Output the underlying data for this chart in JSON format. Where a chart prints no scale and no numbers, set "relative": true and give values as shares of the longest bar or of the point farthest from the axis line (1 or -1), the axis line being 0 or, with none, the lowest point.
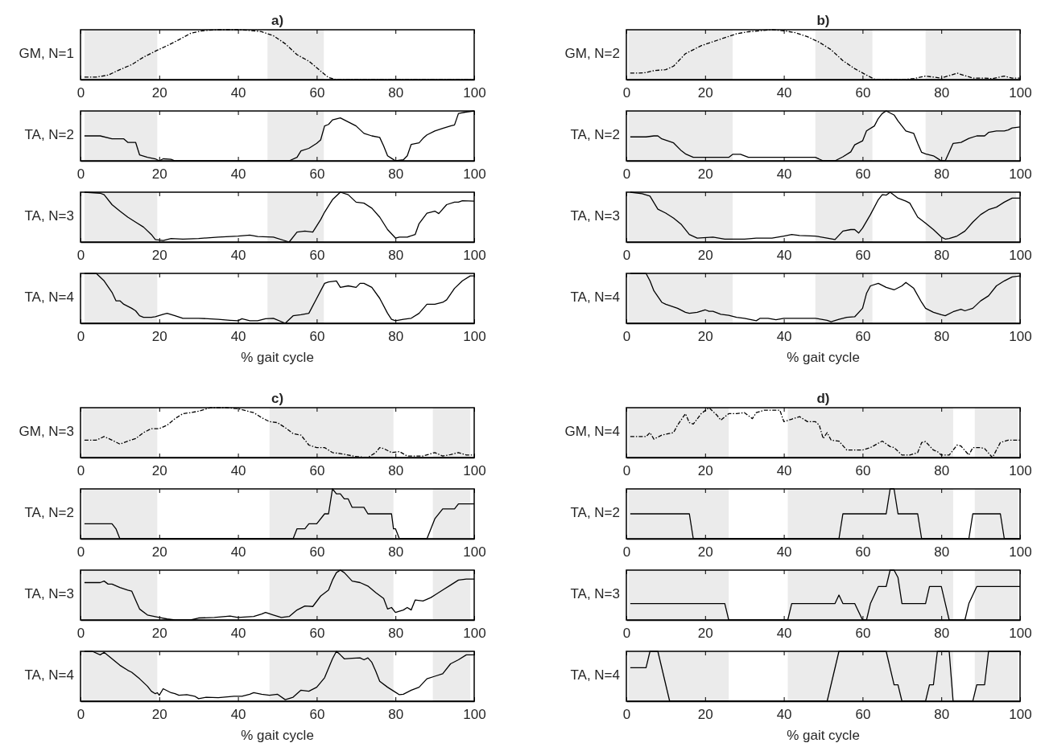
{
  "chart_data": [
    {
      "type": "line",
      "title": "a)",
      "ylabel": "GM, N=1",
      "xlim": [
        0,
        100
      ],
      "xticks": [
        0,
        20,
        40,
        60,
        80,
        100
      ],
      "relative": true,
      "line_style": "dashdot",
      "color": "#000000",
      "bands": [
        {
          "axis": "x",
          "from": 1,
          "to": 19.5,
          "color": "#ebebeb"
        },
        {
          "axis": "x",
          "from": 47.5,
          "to": 61.8,
          "color": "#ebebeb"
        }
      ],
      "x": [
        1,
        4,
        7,
        10,
        13,
        16,
        19,
        22,
        25,
        28,
        31,
        35,
        40,
        44,
        46,
        49,
        52,
        55,
        58,
        61,
        63,
        65,
        100
      ],
      "values": [
        0.05,
        0.05,
        0.09,
        0.2,
        0.3,
        0.45,
        0.57,
        0.68,
        0.8,
        0.93,
        0.98,
        1,
        1,
        0.98,
        0.96,
        0.88,
        0.72,
        0.5,
        0.37,
        0.17,
        0.04,
        0,
        0
      ]
    },
    {
      "type": "line",
      "ylabel": "TA, N=2",
      "xlim": [
        0,
        100
      ],
      "xticks": [
        0,
        20,
        40,
        60,
        80,
        100
      ],
      "relative": true,
      "line_style": "solid",
      "color": "#000000",
      "bands": [
        {
          "axis": "x",
          "from": 1,
          "to": 19.5,
          "color": "#ebebeb"
        },
        {
          "axis": "x",
          "from": 47.5,
          "to": 61.8,
          "color": "#ebebeb"
        }
      ],
      "x": [
        1,
        5,
        8,
        11,
        12,
        14,
        15,
        17,
        19,
        20,
        21,
        23,
        24,
        53,
        55,
        56,
        58,
        60,
        61,
        62,
        63,
        64,
        66,
        68,
        70,
        72,
        74,
        76,
        77,
        78,
        79,
        80,
        82,
        83,
        84,
        86,
        87,
        88,
        90,
        92,
        94,
        95,
        96,
        98,
        100
      ],
      "values": [
        0.5,
        0.5,
        0.44,
        0.44,
        0.37,
        0.37,
        0.12,
        0.07,
        0.04,
        0,
        0.04,
        0.03,
        0,
        0,
        0.07,
        0.2,
        0.25,
        0.35,
        0.42,
        0.7,
        0.73,
        0.82,
        0.86,
        0.78,
        0.7,
        0.55,
        0.5,
        0.47,
        0.3,
        0.1,
        0.05,
        0,
        0.02,
        0.1,
        0.33,
        0.36,
        0.45,
        0.52,
        0.6,
        0.65,
        0.7,
        0.72,
        0.95,
        0.98,
        1
      ]
    },
    {
      "type": "line",
      "ylabel": "TA, N=3",
      "xlim": [
        0,
        100
      ],
      "xticks": [
        0,
        20,
        40,
        60,
        80,
        100
      ],
      "relative": true,
      "line_style": "solid",
      "color": "#000000",
      "bands": [
        {
          "axis": "x",
          "from": 1,
          "to": 19.5,
          "color": "#ebebeb"
        },
        {
          "axis": "x",
          "from": 47.5,
          "to": 61.8,
          "color": "#ebebeb"
        }
      ],
      "x": [
        1,
        5,
        6,
        8,
        10,
        12,
        14,
        16,
        18,
        19,
        21,
        23,
        26,
        30,
        35,
        40,
        43,
        45,
        49,
        53,
        55,
        57,
        59,
        61,
        62,
        64,
        66,
        68,
        70,
        72,
        74,
        76,
        78,
        80,
        81,
        83,
        85,
        86,
        88,
        90,
        91,
        93,
        95,
        96,
        97,
        100
      ],
      "values": [
        1,
        0.98,
        0.95,
        0.75,
        0.62,
        0.5,
        0.4,
        0.3,
        0.15,
        0.05,
        0.03,
        0.07,
        0.06,
        0.07,
        0.1,
        0.12,
        0.14,
        0.11,
        0.1,
        0,
        0.2,
        0.22,
        0.2,
        0.45,
        0.6,
        0.85,
        1,
        0.95,
        0.8,
        0.78,
        0.68,
        0.5,
        0.25,
        0.08,
        0.1,
        0.1,
        0.15,
        0.37,
        0.58,
        0.62,
        0.57,
        0.75,
        0.8,
        0.8,
        0.83,
        0.82
      ]
    },
    {
      "type": "line",
      "ylabel": "TA, N=4",
      "xlabel": "% gait cycle",
      "xlim": [
        0,
        100
      ],
      "xticks": [
        0,
        20,
        40,
        60,
        80,
        100
      ],
      "relative": true,
      "line_style": "solid",
      "color": "#000000",
      "bands": [
        {
          "axis": "x",
          "from": 1,
          "to": 19.5,
          "color": "#ebebeb"
        },
        {
          "axis": "x",
          "from": 47.5,
          "to": 61.8,
          "color": "#ebebeb"
        }
      ],
      "x": [
        1,
        4,
        6,
        8,
        9,
        10,
        11,
        13,
        14,
        15,
        16,
        18,
        19,
        21,
        22,
        24,
        26,
        30,
        35,
        38,
        40,
        41,
        43,
        45,
        47,
        49,
        52,
        54,
        56,
        58,
        60,
        62,
        63,
        65,
        66,
        68,
        70,
        71,
        72,
        74,
        76,
        78,
        79,
        80,
        82,
        84,
        86,
        88,
        90,
        92,
        93,
        95,
        97,
        99,
        100
      ],
      "values": [
        1,
        1,
        0.85,
        0.62,
        0.45,
        0.45,
        0.38,
        0.3,
        0.25,
        0.15,
        0.12,
        0.12,
        0.13,
        0.18,
        0.2,
        0.15,
        0.1,
        0.1,
        0.08,
        0.06,
        0.05,
        0.09,
        0.05,
        0.05,
        0.09,
        0.1,
        0,
        0.15,
        0.17,
        0.2,
        0.5,
        0.8,
        0.83,
        0.85,
        0.72,
        0.75,
        0.72,
        0.8,
        0.8,
        0.72,
        0.5,
        0.2,
        0.08,
        0.05,
        0.08,
        0.1,
        0.2,
        0.38,
        0.38,
        0.42,
        0.47,
        0.7,
        0.85,
        0.95,
        0.95
      ]
    },
    {
      "type": "line",
      "title": "b)",
      "ylabel": "GM, N=2",
      "xlim": [
        0,
        100
      ],
      "xticks": [
        0,
        20,
        40,
        60,
        80,
        100
      ],
      "relative": true,
      "line_style": "dashdot",
      "color": "#000000",
      "bands": [
        {
          "axis": "x",
          "from": 0.5,
          "to": 27,
          "color": "#ebebeb"
        },
        {
          "axis": "x",
          "from": 48,
          "to": 62.5,
          "color": "#ebebeb"
        },
        {
          "axis": "x",
          "from": 76,
          "to": 99,
          "color": "#ebebeb"
        }
      ],
      "x": [
        1,
        3,
        5,
        7,
        10,
        12,
        15,
        17,
        19,
        22,
        25,
        28,
        31,
        34,
        37,
        40,
        43,
        46,
        49,
        52,
        55,
        58,
        61,
        63,
        65,
        70,
        73,
        76,
        78,
        80,
        82,
        84,
        86,
        88,
        91,
        93,
        96,
        98,
        100
      ],
      "values": [
        0.13,
        0.13,
        0.14,
        0.18,
        0.2,
        0.27,
        0.52,
        0.6,
        0.68,
        0.76,
        0.84,
        0.92,
        0.96,
        0.98,
        1,
        0.98,
        0.94,
        0.86,
        0.75,
        0.6,
        0.38,
        0.22,
        0.09,
        0.01,
        0,
        0,
        0.02,
        0.07,
        0.05,
        0.03,
        0.08,
        0.13,
        0.08,
        0.03,
        0.03,
        0.02,
        0.07,
        0.03,
        0.03
      ]
    },
    {
      "type": "line",
      "ylabel": "TA, N=2",
      "xlim": [
        0,
        100
      ],
      "xticks": [
        0,
        20,
        40,
        60,
        80,
        100
      ],
      "relative": true,
      "line_style": "solid",
      "color": "#000000",
      "bands": [
        {
          "axis": "x",
          "from": 0.5,
          "to": 27,
          "color": "#ebebeb"
        },
        {
          "axis": "x",
          "from": 48,
          "to": 62.5,
          "color": "#ebebeb"
        },
        {
          "axis": "x",
          "from": 76,
          "to": 99,
          "color": "#ebebeb"
        }
      ],
      "x": [
        1,
        5,
        7,
        8,
        9,
        12,
        14,
        15,
        17,
        20,
        26,
        27,
        29,
        31,
        48,
        50,
        53,
        55,
        57,
        58,
        60,
        61,
        63,
        64,
        65,
        66,
        68,
        69,
        71,
        73,
        74,
        75,
        76,
        78,
        79,
        80,
        81,
        83,
        85,
        87,
        89,
        91,
        92,
        94,
        96,
        97,
        98,
        100
      ],
      "values": [
        0.48,
        0.48,
        0.5,
        0.5,
        0.44,
        0.36,
        0.2,
        0.14,
        0.07,
        0.07,
        0.07,
        0.13,
        0.13,
        0.07,
        0.07,
        0,
        0,
        0.08,
        0.18,
        0.32,
        0.4,
        0.6,
        0.7,
        0.85,
        0.95,
        1,
        0.92,
        0.8,
        0.6,
        0.55,
        0.35,
        0.17,
        0.14,
        0.1,
        0.05,
        0,
        0,
        0.35,
        0.37,
        0.45,
        0.5,
        0.5,
        0.57,
        0.6,
        0.6,
        0.62,
        0.66,
        0.68
      ]
    },
    {
      "type": "line",
      "ylabel": "TA, N=3",
      "xlim": [
        0,
        100
      ],
      "xticks": [
        0,
        20,
        40,
        60,
        80,
        100
      ],
      "relative": true,
      "line_style": "solid",
      "color": "#000000",
      "bands": [
        {
          "axis": "x",
          "from": 0.5,
          "to": 27,
          "color": "#ebebeb"
        },
        {
          "axis": "x",
          "from": 48,
          "to": 62.5,
          "color": "#ebebeb"
        },
        {
          "axis": "x",
          "from": 76,
          "to": 99,
          "color": "#ebebeb"
        }
      ],
      "x": [
        1,
        4,
        6,
        8,
        10,
        12,
        14,
        16,
        18,
        22,
        25,
        30,
        33,
        37,
        40,
        42,
        44,
        48,
        51,
        53,
        55,
        57,
        58,
        59,
        60,
        62,
        64,
        65,
        66,
        67,
        69,
        71,
        72,
        74,
        76,
        78,
        80,
        81,
        82,
        84,
        86,
        88,
        90,
        92,
        94,
        96,
        98,
        100
      ],
      "values": [
        1,
        0.97,
        0.92,
        0.66,
        0.58,
        0.48,
        0.35,
        0.15,
        0.08,
        0.1,
        0.06,
        0.06,
        0.08,
        0.08,
        0.12,
        0.15,
        0.13,
        0.12,
        0.08,
        0.05,
        0.22,
        0.25,
        0.25,
        0.18,
        0.28,
        0.55,
        0.85,
        0.95,
        0.94,
        1,
        0.88,
        0.82,
        0.78,
        0.5,
        0.38,
        0.25,
        0.1,
        0.06,
        0.07,
        0.12,
        0.22,
        0.4,
        0.55,
        0.65,
        0.7,
        0.8,
        0.88,
        0.88
      ]
    },
    {
      "type": "line",
      "ylabel": "TA, N=4",
      "xlabel": "% gait cycle",
      "xlim": [
        0,
        100
      ],
      "xticks": [
        0,
        20,
        40,
        60,
        80,
        100
      ],
      "relative": true,
      "line_style": "solid",
      "color": "#000000",
      "bands": [
        {
          "axis": "x",
          "from": 0.5,
          "to": 27,
          "color": "#ebebeb"
        },
        {
          "axis": "x",
          "from": 48,
          "to": 62.5,
          "color": "#ebebeb"
        },
        {
          "axis": "x",
          "from": 76,
          "to": 99,
          "color": "#ebebeb"
        }
      ],
      "x": [
        1,
        5,
        6,
        7,
        9,
        10,
        13,
        15,
        16,
        18,
        20,
        21,
        22,
        24,
        26,
        28,
        30,
        33,
        34,
        36,
        38,
        40,
        43,
        46,
        48,
        51,
        52,
        54,
        56,
        58,
        60,
        61,
        62,
        64,
        66,
        68,
        70,
        71,
        73,
        75,
        76,
        78,
        80,
        81,
        83,
        85,
        86,
        88,
        90,
        92,
        94,
        96,
        98,
        100
      ],
      "values": [
        1,
        1,
        0.85,
        0.65,
        0.42,
        0.38,
        0.3,
        0.22,
        0.2,
        0.22,
        0.27,
        0.24,
        0.24,
        0.18,
        0.16,
        0.12,
        0.1,
        0.05,
        0.1,
        0.1,
        0.07,
        0.1,
        0.1,
        0.1,
        0.1,
        0.06,
        0.03,
        0.08,
        0.12,
        0.13,
        0.3,
        0.6,
        0.75,
        0.8,
        0.72,
        0.67,
        0.75,
        0.82,
        0.7,
        0.42,
        0.3,
        0.22,
        0.17,
        0.15,
        0.23,
        0.28,
        0.25,
        0.3,
        0.45,
        0.55,
        0.75,
        0.85,
        0.93,
        0.95
      ]
    },
    {
      "type": "line",
      "title": "c)",
      "ylabel": "GM, N=3",
      "xlim": [
        0,
        100
      ],
      "xticks": [
        0,
        20,
        40,
        60,
        80,
        100
      ],
      "relative": true,
      "line_style": "dashdot",
      "color": "#000000",
      "bands": [
        {
          "axis": "x",
          "from": 0.5,
          "to": 19.5,
          "color": "#ebebeb"
        },
        {
          "axis": "x",
          "from": 48,
          "to": 79.5,
          "color": "#ebebeb"
        },
        {
          "axis": "x",
          "from": 89.5,
          "to": 99,
          "color": "#ebebeb"
        }
      ],
      "x": [
        1,
        4,
        6,
        8,
        10,
        12,
        14,
        16,
        18,
        20,
        22,
        24,
        26,
        28,
        30,
        33,
        37,
        40,
        44,
        46,
        48,
        50,
        52,
        54,
        56,
        58,
        60,
        62,
        64,
        66,
        70,
        73,
        75,
        76,
        77,
        79,
        81,
        83,
        87,
        90,
        92,
        94,
        96,
        98,
        100
      ],
      "values": [
        0.35,
        0.35,
        0.42,
        0.35,
        0.27,
        0.33,
        0.38,
        0.5,
        0.58,
        0.58,
        0.65,
        0.78,
        0.88,
        0.9,
        0.93,
        1,
        1,
        0.98,
        0.9,
        0.8,
        0.72,
        0.7,
        0.6,
        0.48,
        0.45,
        0.25,
        0.2,
        0.2,
        0.1,
        0.08,
        0.02,
        0,
        0.1,
        0.2,
        0.18,
        0.1,
        0.12,
        0.03,
        0.03,
        0.1,
        0.03,
        0.06,
        0.1,
        0.05,
        0.05
      ]
    },
    {
      "type": "line",
      "ylabel": "TA, N=2",
      "xlim": [
        0,
        100
      ],
      "xticks": [
        0,
        20,
        40,
        60,
        80,
        100
      ],
      "relative": true,
      "line_style": "solid",
      "color": "#000000",
      "bands": [
        {
          "axis": "x",
          "from": 0.5,
          "to": 19.5,
          "color": "#ebebeb"
        },
        {
          "axis": "x",
          "from": 48,
          "to": 79.5,
          "color": "#ebebeb"
        },
        {
          "axis": "x",
          "from": 89.5,
          "to": 99,
          "color": "#ebebeb"
        }
      ],
      "x": [
        1,
        8,
        9,
        10,
        54,
        55,
        57,
        58,
        60,
        62,
        63,
        64,
        65,
        66,
        67,
        68,
        69,
        72,
        73,
        79,
        79.5,
        80,
        81,
        88,
        90,
        92,
        95,
        96,
        100
      ],
      "values": [
        0.3,
        0.3,
        0.2,
        0,
        0,
        0.2,
        0.2,
        0.3,
        0.3,
        0.5,
        0.5,
        1,
        0.9,
        0.9,
        0.8,
        0.8,
        0.63,
        0.63,
        0.5,
        0.5,
        0.2,
        0.2,
        0,
        0,
        0.4,
        0.6,
        0.6,
        0.7,
        0.7
      ]
    },
    {
      "type": "line",
      "ylabel": "TA, N=3",
      "xlim": [
        0,
        100
      ],
      "xticks": [
        0,
        20,
        40,
        60,
        80,
        100
      ],
      "relative": true,
      "line_style": "solid",
      "color": "#000000",
      "bands": [
        {
          "axis": "x",
          "from": 0.5,
          "to": 19.5,
          "color": "#ebebeb"
        },
        {
          "axis": "x",
          "from": 48,
          "to": 79.5,
          "color": "#ebebeb"
        },
        {
          "axis": "x",
          "from": 89.5,
          "to": 99,
          "color": "#ebebeb"
        }
      ],
      "x": [
        1,
        5,
        6,
        7,
        8,
        10,
        12,
        13,
        14,
        15,
        17,
        20,
        22,
        24,
        28,
        30,
        34,
        38,
        40,
        44,
        46,
        47,
        49,
        51,
        53,
        55,
        57,
        59,
        61,
        63,
        64,
        65,
        66,
        67,
        69,
        71,
        73,
        75,
        77,
        78,
        79,
        80,
        82,
        83,
        84,
        85,
        87,
        89,
        90,
        92,
        94,
        96,
        98,
        100
      ],
      "values": [
        0.75,
        0.75,
        0.78,
        0.72,
        0.72,
        0.65,
        0.6,
        0.58,
        0.4,
        0.22,
        0.1,
        0.05,
        0.02,
        0,
        0,
        0.04,
        0.05,
        0.08,
        0.05,
        0.07,
        0.12,
        0.15,
        0.1,
        0.05,
        0.07,
        0.2,
        0.28,
        0.27,
        0.48,
        0.6,
        0.8,
        0.95,
        1,
        0.95,
        0.78,
        0.75,
        0.68,
        0.55,
        0.43,
        0.22,
        0.25,
        0.15,
        0.2,
        0.25,
        0.2,
        0.4,
        0.38,
        0.45,
        0.5,
        0.6,
        0.7,
        0.8,
        0.82,
        0.82
      ]
    },
    {
      "type": "line",
      "ylabel": "TA, N=4",
      "xlabel": "% gait cycle",
      "xlim": [
        0,
        100
      ],
      "xticks": [
        0,
        20,
        40,
        60,
        80,
        100
      ],
      "relative": true,
      "line_style": "solid",
      "color": "#000000",
      "bands": [
        {
          "axis": "x",
          "from": 0.5,
          "to": 19.5,
          "color": "#ebebeb"
        },
        {
          "axis": "x",
          "from": 48,
          "to": 79.5,
          "color": "#ebebeb"
        },
        {
          "axis": "x",
          "from": 89.5,
          "to": 99,
          "color": "#ebebeb"
        }
      ],
      "x": [
        1,
        3,
        5,
        6,
        8,
        10,
        12,
        13,
        15,
        17,
        18,
        19,
        19.5,
        20,
        21,
        23,
        24,
        25,
        27,
        29,
        30,
        32,
        35,
        39,
        41,
        43,
        44,
        46,
        48,
        50,
        52,
        54,
        56,
        58,
        60,
        62,
        64,
        65,
        66,
        67,
        69,
        71,
        72,
        73,
        74,
        75,
        76,
        78,
        80,
        81,
        82,
        84,
        86,
        88,
        90,
        92,
        94,
        96,
        98,
        100
      ],
      "values": [
        1,
        1,
        0.93,
        0.98,
        0.85,
        0.72,
        0.62,
        0.58,
        0.45,
        0.3,
        0.2,
        0.15,
        0.17,
        0.12,
        0.25,
        0.17,
        0.15,
        0.12,
        0.13,
        0.1,
        0.05,
        0.08,
        0.07,
        0.1,
        0.1,
        0.14,
        0.17,
        0.14,
        0.12,
        0.14,
        0.03,
        0.08,
        0.22,
        0.2,
        0.28,
        0.47,
        0.85,
        1,
        0.93,
        0.85,
        0.86,
        0.87,
        0.83,
        0.87,
        0.78,
        0.6,
        0.4,
        0.28,
        0.18,
        0.13,
        0.14,
        0.22,
        0.28,
        0.45,
        0.5,
        0.55,
        0.75,
        0.83,
        0.93,
        0.93
      ]
    },
    {
      "type": "line",
      "title": "d)",
      "ylabel": "GM, N=4",
      "xlim": [
        0,
        100
      ],
      "xticks": [
        0,
        20,
        40,
        60,
        80,
        100
      ],
      "relative": true,
      "line_style": "dashdot",
      "color": "#000000",
      "bands": [
        {
          "axis": "x",
          "from": 0.5,
          "to": 26,
          "color": "#ebebeb"
        },
        {
          "axis": "x",
          "from": 41,
          "to": 83,
          "color": "#ebebeb"
        },
        {
          "axis": "x",
          "from": 88.5,
          "to": 99.5,
          "color": "#ebebeb"
        }
      ],
      "x": [
        1,
        5,
        6,
        7,
        9,
        12,
        13,
        15,
        16,
        17,
        19,
        21,
        23,
        24,
        26,
        28,
        30,
        32,
        33,
        35,
        39,
        40,
        42,
        44,
        46,
        48,
        49,
        50,
        51,
        52,
        54,
        56,
        60,
        62,
        65,
        67,
        68,
        70,
        72,
        74,
        75,
        76,
        78,
        79,
        80,
        82,
        84,
        85,
        87,
        88,
        90,
        91,
        93,
        95,
        97,
        100
      ],
      "values": [
        0.42,
        0.42,
        0.5,
        0.37,
        0.45,
        0.5,
        0.65,
        0.88,
        0.7,
        0.67,
        0.88,
        1,
        0.85,
        0.75,
        0.88,
        0.88,
        0.9,
        0.78,
        0.9,
        0.95,
        0.95,
        0.72,
        0.77,
        0.82,
        0.72,
        0.72,
        0.65,
        0.38,
        0.5,
        0.35,
        0.33,
        0.15,
        0.15,
        0.2,
        0.33,
        0.22,
        0.2,
        0.05,
        0.05,
        0.1,
        0.3,
        0.32,
        0.15,
        0.12,
        0.05,
        0.05,
        0.25,
        0.23,
        0.05,
        0.2,
        0.2,
        0.18,
        0,
        0.3,
        0.35,
        0.35
      ]
    },
    {
      "type": "line",
      "ylabel": "TA, N=2",
      "xlim": [
        0,
        100
      ],
      "xticks": [
        0,
        20,
        40,
        60,
        80,
        100
      ],
      "relative": true,
      "line_style": "solid",
      "color": "#000000",
      "bands": [
        {
          "axis": "x",
          "from": 0.5,
          "to": 26,
          "color": "#ebebeb"
        },
        {
          "axis": "x",
          "from": 41,
          "to": 83,
          "color": "#ebebeb"
        },
        {
          "axis": "x",
          "from": 88.5,
          "to": 99.5,
          "color": "#ebebeb"
        }
      ],
      "x": [
        1,
        16,
        17,
        54,
        55,
        66,
        67,
        68,
        69,
        74,
        75,
        87,
        88,
        95,
        96,
        100
      ],
      "values": [
        0.5,
        0.5,
        0,
        0,
        0.5,
        0.5,
        1,
        1,
        0.5,
        0.5,
        0,
        0,
        0.5,
        0.5,
        0,
        0
      ]
    },
    {
      "type": "line",
      "ylabel": "TA, N=3",
      "xlim": [
        0,
        100
      ],
      "xticks": [
        0,
        20,
        40,
        60,
        80,
        100
      ],
      "relative": true,
      "line_style": "solid",
      "color": "#000000",
      "bands": [
        {
          "axis": "x",
          "from": 0.5,
          "to": 26,
          "color": "#ebebeb"
        },
        {
          "axis": "x",
          "from": 41,
          "to": 83,
          "color": "#ebebeb"
        },
        {
          "axis": "x",
          "from": 88.5,
          "to": 99.5,
          "color": "#ebebeb"
        }
      ],
      "x": [
        1,
        25,
        26,
        41,
        42,
        53,
        54,
        55,
        58,
        60,
        61,
        62,
        64,
        66,
        67,
        68,
        69,
        70,
        76,
        77,
        80,
        82,
        86,
        87,
        89,
        100
      ],
      "values": [
        0.33,
        0.33,
        0,
        0,
        0.33,
        0.33,
        0.5,
        0.33,
        0.33,
        0,
        0,
        0.33,
        0.67,
        0.67,
        1,
        1,
        0.85,
        0.33,
        0.33,
        0.67,
        0.67,
        0,
        0,
        0.33,
        0.67,
        0.67
      ]
    },
    {
      "type": "line",
      "ylabel": "TA, N=4",
      "xlabel": "% gait cycle",
      "xlim": [
        0,
        100
      ],
      "xticks": [
        0,
        20,
        40,
        60,
        80,
        100
      ],
      "relative": true,
      "line_style": "solid",
      "color": "#000000",
      "bands": [
        {
          "axis": "x",
          "from": 0.5,
          "to": 26,
          "color": "#ebebeb"
        },
        {
          "axis": "x",
          "from": 41,
          "to": 83,
          "color": "#ebebeb"
        },
        {
          "axis": "x",
          "from": 88.5,
          "to": 99.5,
          "color": "#ebebeb"
        }
      ],
      "x": [
        1,
        5,
        6,
        8,
        11,
        51,
        54,
        66,
        68,
        69,
        70,
        76,
        77,
        78,
        79,
        80,
        82,
        83,
        88,
        89,
        91,
        92,
        100
      ],
      "values": [
        0.67,
        0.67,
        1,
        1,
        0,
        0,
        1,
        1,
        0.33,
        0.33,
        0,
        0,
        0.33,
        0.33,
        1,
        1,
        1,
        0,
        0,
        0.33,
        0.33,
        1,
        1
      ]
    }
  ]
}
